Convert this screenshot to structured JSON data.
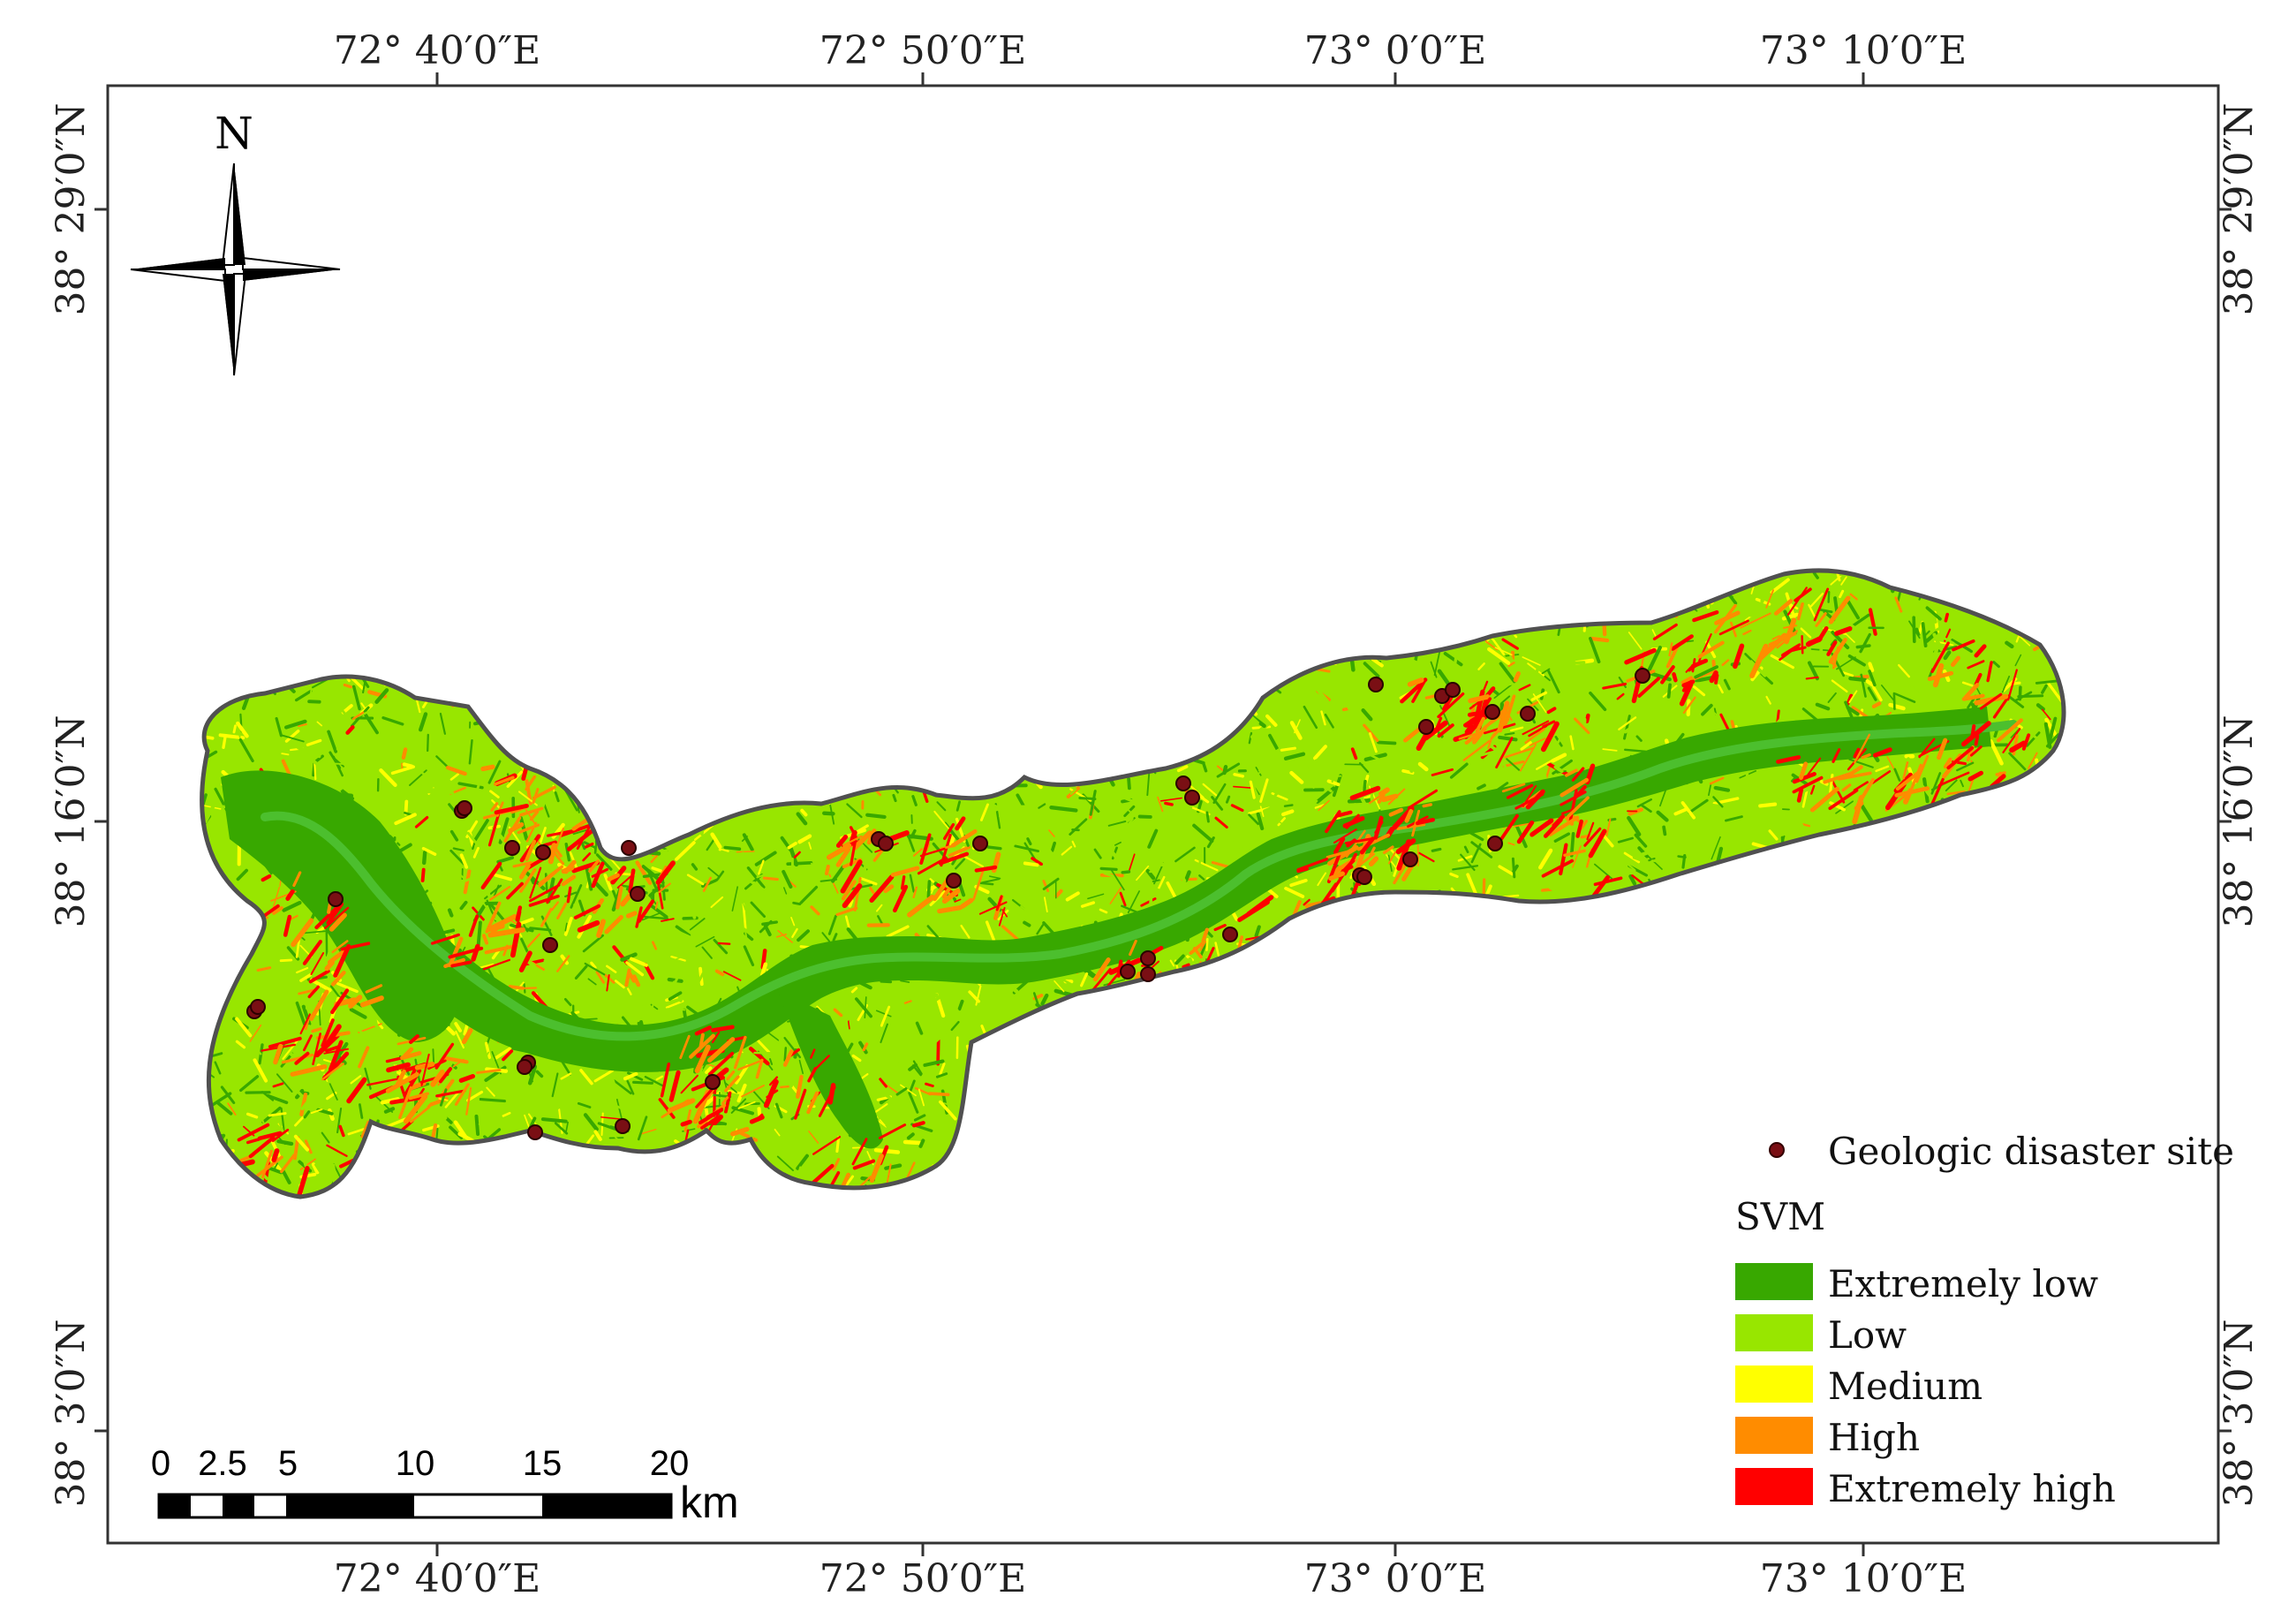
{
  "map": {
    "north_label": "N",
    "top_lon_labels": [
      "72° 40′0″E",
      "72° 50′0″E",
      "73° 0′0″E",
      "73° 10′0″E"
    ],
    "bottom_lon_labels": [
      "72° 40′0″E",
      "72° 50′0″E",
      "73° 0′0″E",
      "73° 10′0″E"
    ],
    "left_lat_labels": [
      "38° 29′0″N",
      "38° 16′0″N",
      "38° 3′0″N"
    ],
    "right_lat_labels": [
      "38° 29′0″N",
      "38° 16′0″N",
      "38° 3′0″N"
    ],
    "scale_bar": {
      "ticks": [
        "0",
        "2.5",
        "5",
        "10",
        "15",
        "20"
      ],
      "unit": "km"
    },
    "legend": {
      "point_label": "Geologic disaster site",
      "point_color": "#7a0f14",
      "title": "SVM",
      "classes": [
        {
          "label": "Extremely  low",
          "color": "#38a800"
        },
        {
          "label": "Low",
          "color": "#98e600"
        },
        {
          "label": "Medium",
          "color": "#ffff00"
        },
        {
          "label": "High",
          "color": "#ff8c00"
        },
        {
          "label": "Extremely  high",
          "color": "#ff0000"
        }
      ]
    }
  }
}
